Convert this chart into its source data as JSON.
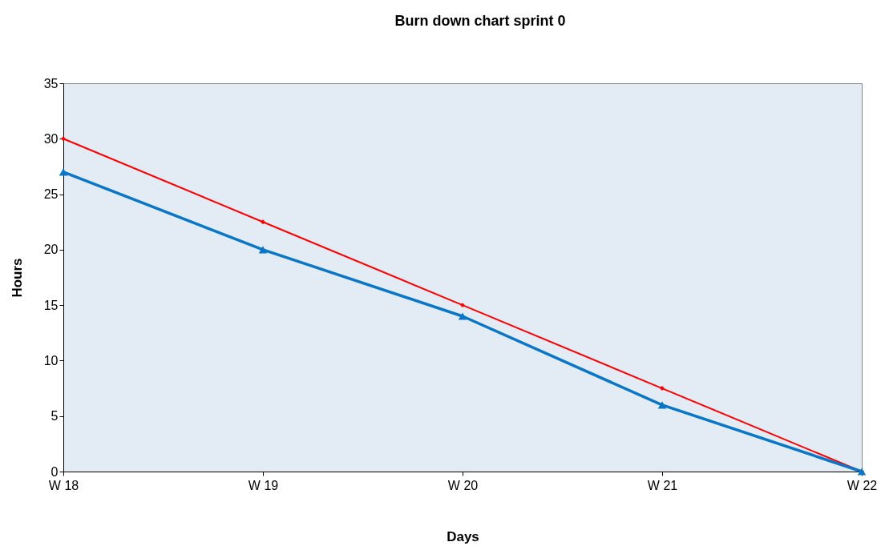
{
  "chart_data": {
    "type": "line",
    "title": "Burn down chart sprint 0",
    "xlabel": "Days",
    "ylabel": "Hours",
    "categories": [
      "W 18",
      "W 19",
      "W 20",
      "W 21",
      "W 22"
    ],
    "series": [
      {
        "color": "#ff0000",
        "marker": "diamond",
        "values": [
          30,
          22.5,
          15,
          7.5,
          0
        ]
      },
      {
        "color": "#0a76c8",
        "marker": "triangle",
        "values": [
          27,
          20,
          14,
          6,
          0
        ]
      }
    ],
    "ylim": [
      0,
      35
    ],
    "yticks": [
      0,
      5,
      10,
      15,
      20,
      25,
      30,
      35
    ],
    "grid": false
  }
}
